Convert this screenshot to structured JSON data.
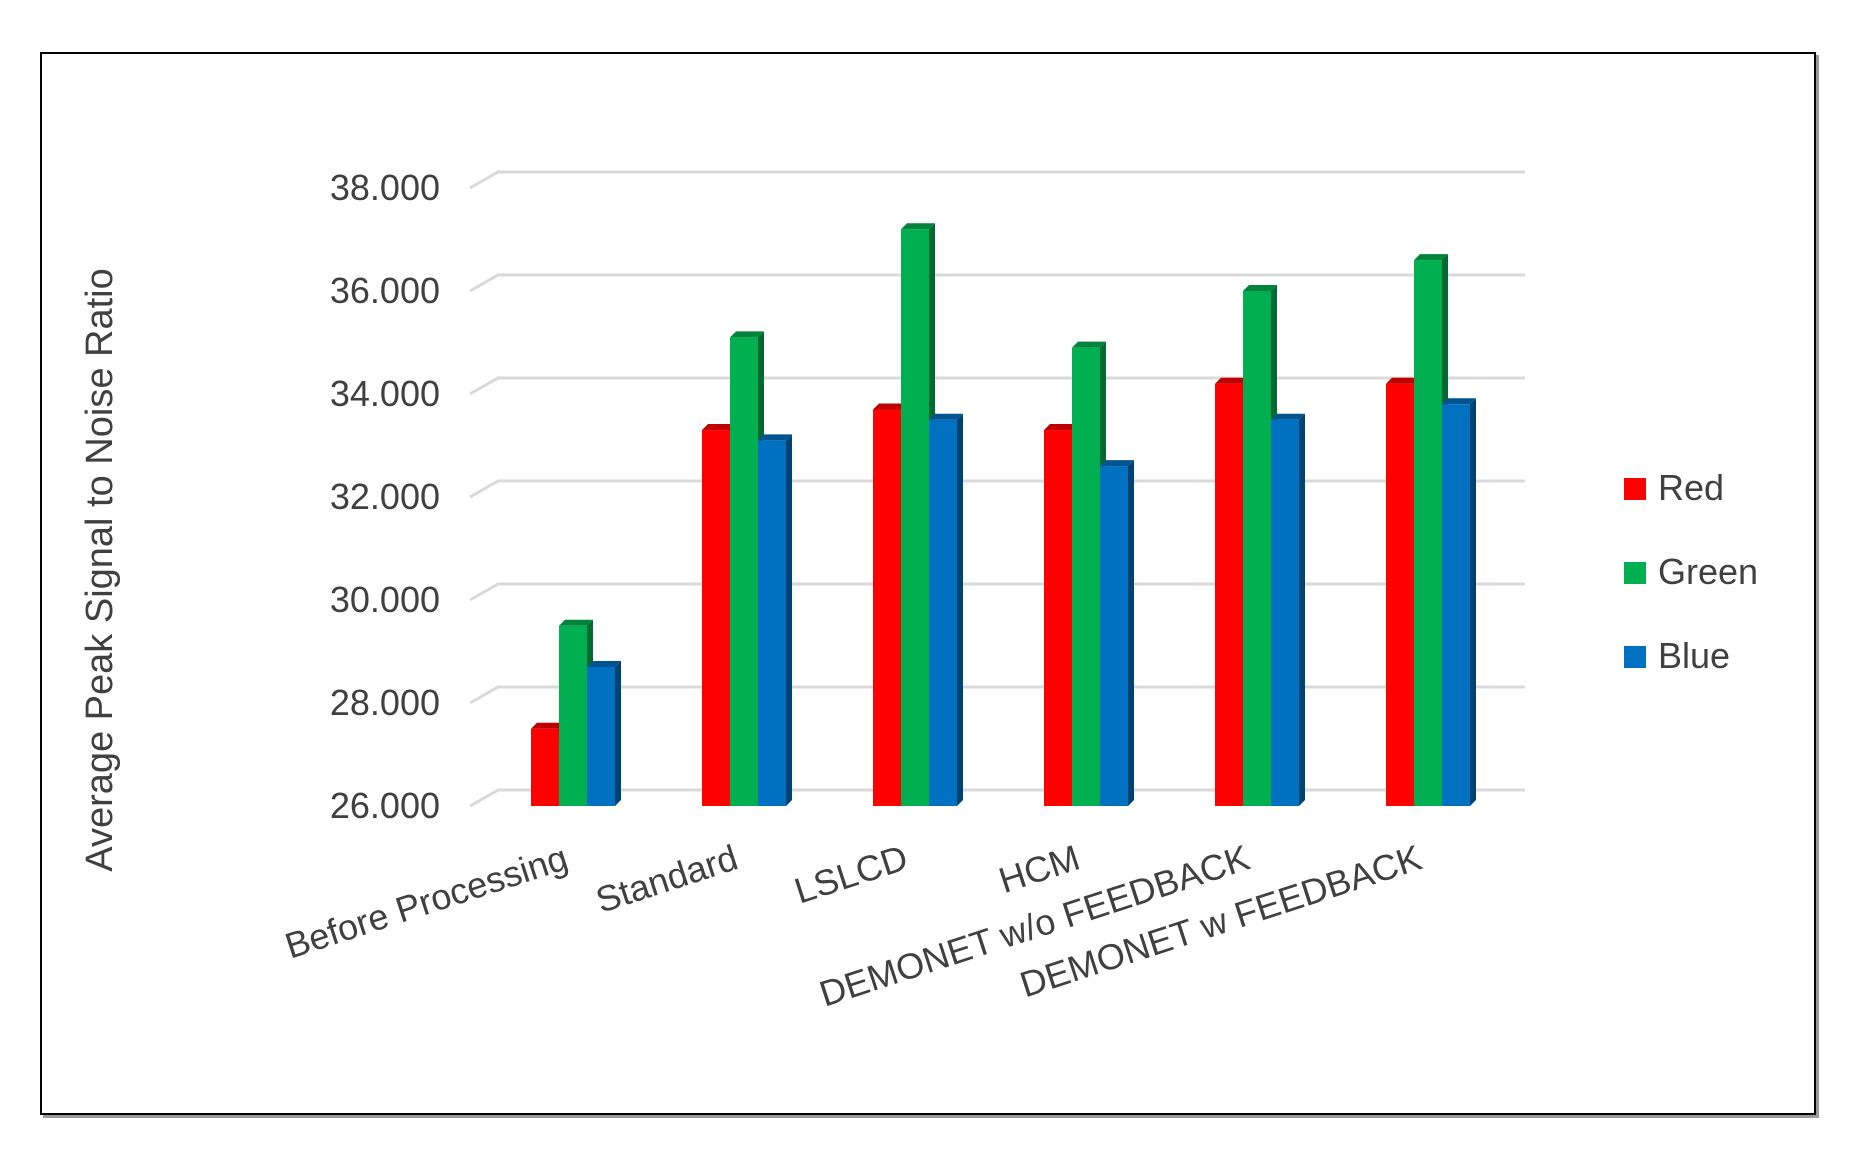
{
  "chart_data": {
    "type": "bar",
    "title": "",
    "xlabel": "",
    "ylabel": "Average Peak Signal to Noise Ratio",
    "ylim": [
      26,
      38
    ],
    "yticks": [
      "26.000",
      "28.000",
      "30.000",
      "32.000",
      "34.000",
      "36.000",
      "38.000"
    ],
    "categories": [
      "Before Processing",
      "Standard",
      "LSLCD",
      "HCM",
      "DEMONET w/o FEEDBACK",
      "DEMONET w FEEDBACK"
    ],
    "series": [
      {
        "name": "Red",
        "color": "#ff0000",
        "values": [
          27.5,
          33.3,
          33.7,
          33.3,
          34.2,
          34.2
        ]
      },
      {
        "name": "Green",
        "color": "#00b050",
        "values": [
          29.5,
          35.1,
          37.2,
          34.9,
          36.0,
          36.6
        ]
      },
      {
        "name": "Blue",
        "color": "#0070c0",
        "values": [
          28.7,
          33.1,
          33.5,
          32.6,
          33.5,
          33.8
        ]
      }
    ],
    "grid": true,
    "legend": "right"
  }
}
